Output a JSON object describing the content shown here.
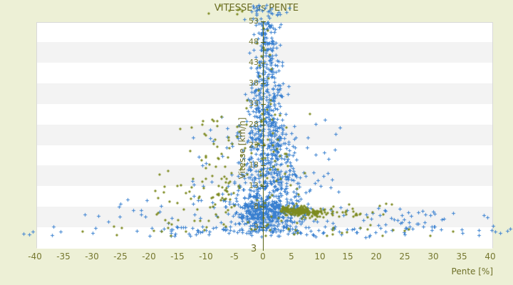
{
  "app": {
    "background_color": "#edf0d6"
  },
  "chart_data": {
    "type": "scatter",
    "title": "VITESSE vs PENTE",
    "xlabel": "Pente [%]",
    "ylabel": "Vitesse [km/h]",
    "xlim": [
      -39.8,
      40.5
    ],
    "ylim": [
      -2,
      52.85
    ],
    "x_ticks": [
      -40,
      -35,
      -30,
      -25,
      -20,
      -15,
      -10,
      -5,
      0,
      5,
      10,
      15,
      20,
      25,
      30,
      35,
      40
    ],
    "y_ticks": [
      53,
      48,
      43,
      38,
      33,
      28,
      23,
      18,
      13,
      8,
      3
    ],
    "y_axis_at_x": 0,
    "y_axis_end_label": "3",
    "grid": {
      "band_colors": [
        "#ffffff",
        "#f3f3f3"
      ],
      "plot_border": "#d9d9d9"
    },
    "legend": null,
    "colors": {
      "title": "#6a6c24",
      "tick_label": "#75772e",
      "axis_line": "#556114",
      "series_blue": "#3a80d0",
      "series_olive": "#7d8a1f"
    },
    "seed": 42,
    "series": [
      {
        "name": "series-1-blue",
        "marker": "plus",
        "color": "#3a80d0",
        "clusters": [
          {
            "n": 320,
            "x": [
              "normal",
              0.6,
              2.8
            ],
            "y": [
              "uniform",
              2.0,
              9.0
            ]
          },
          {
            "n": 300,
            "x": [
              "normal",
              0.7,
              3.3
            ],
            "y": [
              "uniform",
              5.0,
              16.0
            ]
          },
          {
            "n": 260,
            "x": [
              "normal",
              0.9,
              2.3
            ],
            "y": [
              "uniform",
              16.0,
              28.0
            ]
          },
          {
            "n": 150,
            "x": [
              "normal",
              0.7,
              1.7
            ],
            "y": [
              "uniform",
              28.0,
              38.0
            ]
          },
          {
            "n": 90,
            "x": [
              "normal",
              0.6,
              1.3
            ],
            "y": [
              "uniform",
              38.0,
              47.0
            ]
          },
          {
            "n": 60,
            "x": [
              "normal",
              0.6,
              1.1
            ],
            "y": [
              "uniform",
              47.0,
              53.0
            ]
          },
          {
            "n": 28,
            "x": [
              "normal",
              1.2,
              2.2
            ],
            "y": [
              "uniform",
              53.0,
              57.0
            ]
          },
          {
            "n": 80,
            "x": [
              "uniform",
              -20.0,
              26.0
            ],
            "y": [
              "uniform",
              0.6,
              3.2
            ]
          },
          {
            "n": 70,
            "x": [
              "uniform",
              -13.0,
              14.0
            ],
            "y": [
              "uniform",
              9.0,
              30.0
            ]
          },
          {
            "n": 55,
            "x": [
              "uniform",
              7.0,
              32.0
            ],
            "y": [
              "uniform",
              2.0,
              8.0
            ]
          },
          {
            "n": 30,
            "x": [
              "uniform",
              -26.0,
              -6.0
            ],
            "y": [
              "uniform",
              2.0,
              10.0
            ]
          },
          {
            "n": 12,
            "x": [
              "uniform",
              26.0,
              41.0
            ],
            "y": [
              "uniform",
              1.0,
              8.0
            ]
          },
          {
            "n": 8,
            "x": [
              "uniform",
              -41.0,
              -27.0
            ],
            "y": [
              "uniform",
              1.0,
              7.0
            ]
          }
        ],
        "points": [
          [
            -42.0,
            1.5
          ],
          [
            -41.0,
            1.3
          ],
          [
            -35.5,
            2.0
          ],
          [
            -19.9,
            0.9
          ],
          [
            40.9,
            2.0
          ],
          [
            41.8,
            1.6
          ],
          [
            40.3,
            2.4
          ],
          [
            43.0,
            2.2
          ],
          [
            43.5,
            2.6
          ],
          [
            -2.0,
            55.5
          ],
          [
            1.5,
            56.2
          ],
          [
            3.0,
            54.8
          ]
        ]
      },
      {
        "name": "series-2-olive",
        "marker": "diamond",
        "color": "#7d8a1f",
        "clusters": [
          {
            "n": 120,
            "x": [
              "uniform",
              3.2,
              8.0
            ],
            "y": [
              "normal",
              7.1,
              0.55
            ]
          },
          {
            "n": 80,
            "x": [
              "uniform",
              6.0,
              11.3
            ],
            "y": [
              "normal",
              6.5,
              0.5
            ]
          },
          {
            "n": 14,
            "x": [
              "uniform",
              11.3,
              17.5
            ],
            "y": [
              "normal",
              6.2,
              0.5
            ]
          },
          {
            "n": 60,
            "x": [
              "normal",
              -8.0,
              2.8
            ],
            "y": [
              "uniform",
              8.0,
              30.0
            ]
          },
          {
            "n": 45,
            "x": [
              "uniform",
              -19.0,
              -5.0
            ],
            "y": [
              "uniform",
              2.0,
              17.0
            ]
          },
          {
            "n": 70,
            "x": [
              "normal",
              1.3,
              2.6
            ],
            "y": [
              "uniform",
              2.0,
              34.0
            ]
          },
          {
            "n": 12,
            "x": [
              "normal",
              0.6,
              1.2
            ],
            "y": [
              "uniform",
              34.0,
              52.0
            ]
          },
          {
            "n": 26,
            "x": [
              "uniform",
              -33.0,
              36.0
            ],
            "y": [
              "uniform",
              0.8,
              4.5
            ]
          },
          {
            "n": 14,
            "x": [
              "uniform",
              12.0,
              24.0
            ],
            "y": [
              "uniform",
              5.0,
              9.0
            ]
          },
          {
            "n": 5,
            "x": [
              "uniform",
              -9.0,
              4.0
            ],
            "y": [
              "uniform",
              54.0,
              57.0
            ]
          }
        ],
        "points": [
          [
            33.5,
            1.9
          ],
          [
            -31.7,
            1.9
          ],
          [
            18.4,
            2.5
          ],
          [
            25.0,
            2.2
          ],
          [
            -9.5,
            55.0
          ],
          [
            -4.0,
            56.0
          ]
        ]
      }
    ]
  }
}
